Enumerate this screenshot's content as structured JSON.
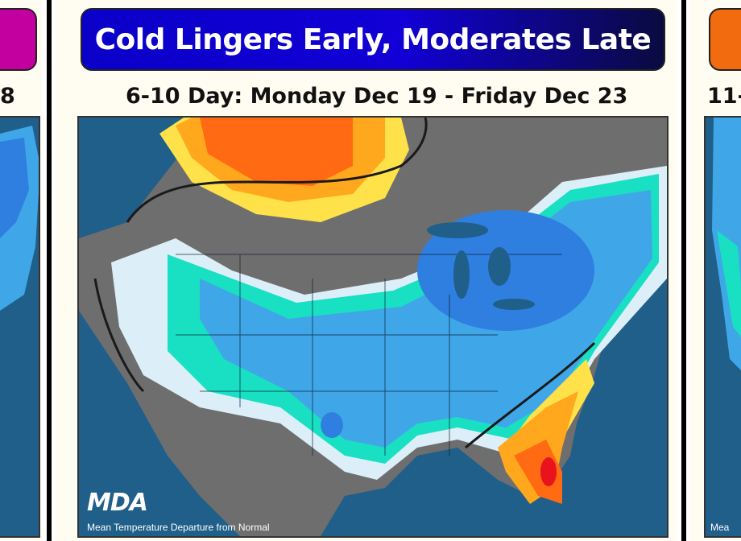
{
  "left_panel": {
    "banner_color": "#c3009f",
    "subtitle_fragment": "8"
  },
  "center_panel": {
    "banner_title": "Cold Lingers Early, Moderates Late",
    "banner_color": "#0a00c8",
    "subtitle": "6-10 Day: Monday Dec 19 - Friday Dec 23",
    "logo": "MDA",
    "legend_caption": "Mean Temperature Departure from Normal"
  },
  "right_panel": {
    "banner_color": "#f26b0e",
    "subtitle_fragment": "11-",
    "logo_fragment": "Mea"
  },
  "colors": {
    "ocean": "#1f5f8a",
    "land_outside": "#6e6e6e",
    "near_normal_cold": "#a6cff0",
    "cold": "#3fa6e8",
    "colder": "#2f7fe0",
    "neutral_light": "#dceff8",
    "teal": "#19e0c2",
    "warm_yellow": "#ffe24a",
    "warm_orange": "#ffa81e",
    "warm_red": "#ff6a12",
    "hot_red": "#e8131c"
  }
}
